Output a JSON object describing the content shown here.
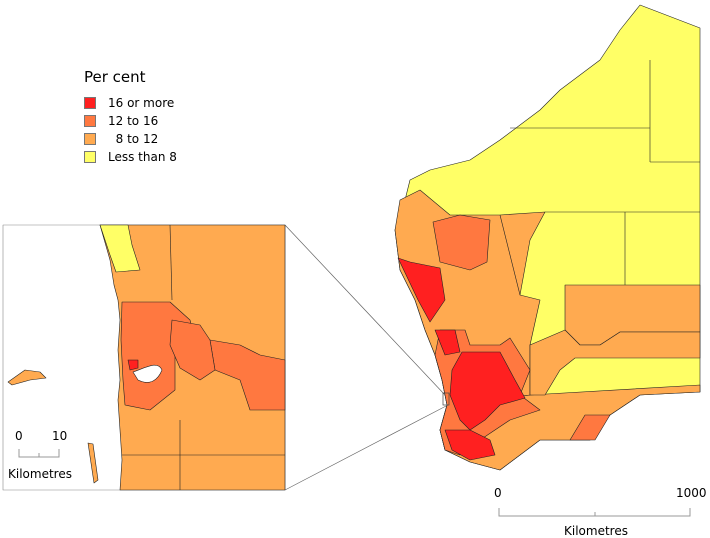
{
  "legend": {
    "title": "Per cent",
    "items": [
      {
        "label": "16 or more",
        "color": "#ff2020"
      },
      {
        "label": "12 to 16",
        "color": "#ff7840"
      },
      {
        "label": "  8 to 12",
        "color": "#ffaa50"
      },
      {
        "label": "Less than 8",
        "color": "#ffff66"
      }
    ]
  },
  "main_scale": {
    "start": "0",
    "end": "1000",
    "unit": "Kilometres"
  },
  "inset_scale": {
    "start": "0",
    "end": "10",
    "unit": "Kilometres"
  }
}
